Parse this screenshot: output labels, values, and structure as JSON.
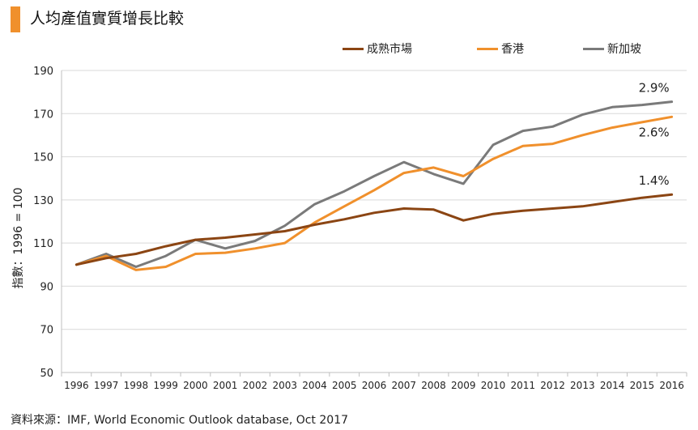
{
  "title": "人均產值實質增長比較",
  "accent_color": "#f0902c",
  "legend": [
    {
      "name": "成熟市場",
      "color": "#8b4513"
    },
    {
      "name": "香港",
      "color": "#f0902c"
    },
    {
      "name": "新加坡",
      "color": "#7a7a7a"
    }
  ],
  "ylabel": "指數：1996 = 100",
  "source": "資料來源：IMF, World Economic Outlook database, Oct 2017",
  "chart_data": {
    "type": "line",
    "title": "人均產值實質增長比較",
    "xlabel": "",
    "ylabel": "指數：1996 = 100",
    "ylim": [
      50,
      190
    ],
    "yticks": [
      50,
      70,
      90,
      110,
      130,
      150,
      170,
      190
    ],
    "grid": true,
    "legend_position": "top",
    "x": [
      "1996",
      "1997",
      "1998",
      "1999",
      "2000",
      "2001",
      "2002",
      "2003",
      "2004",
      "2005",
      "2006",
      "2007",
      "2008",
      "2009",
      "2010",
      "2011",
      "2012",
      "2013",
      "2014",
      "2015",
      "2016"
    ],
    "series": [
      {
        "name": "成熟市場",
        "color": "#8b4513",
        "end_label": "1.4%",
        "values": [
          100,
          103,
          105,
          108.5,
          111.5,
          112.5,
          114,
          115.5,
          118.5,
          121,
          124,
          126,
          125.5,
          120.5,
          123.5,
          125,
          126,
          127,
          129,
          131,
          132.5
        ]
      },
      {
        "name": "香港",
        "color": "#f0902c",
        "end_label": "2.6%",
        "values": [
          100,
          104,
          97.5,
          99,
          105,
          105.5,
          107.5,
          110,
          119.5,
          127,
          134.5,
          142.5,
          145,
          141,
          149,
          155,
          156,
          160,
          163.5,
          166,
          168.5
        ]
      },
      {
        "name": "新加坡",
        "color": "#7a7a7a",
        "end_label": "2.9%",
        "values": [
          100,
          105,
          99,
          104,
          111.5,
          107.5,
          111,
          118,
          128,
          134,
          141,
          147.5,
          142,
          137.5,
          155.5,
          162,
          164,
          169.5,
          173,
          174,
          175.5
        ]
      }
    ]
  }
}
